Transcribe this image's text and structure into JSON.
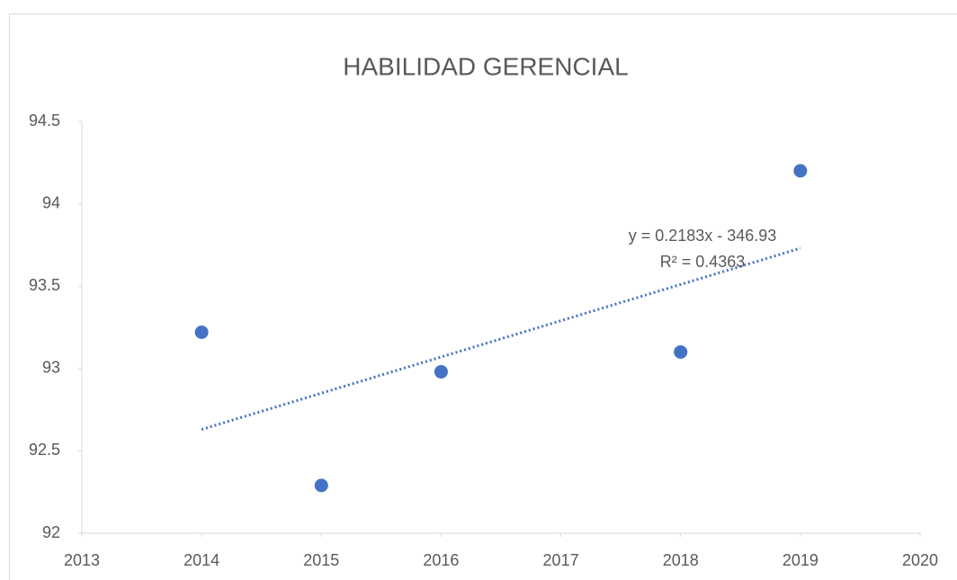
{
  "chart_data": {
    "type": "scatter",
    "title": "HABILIDAD GERENCIAL",
    "x": [
      2014,
      2015,
      2016,
      2018,
      2019
    ],
    "series": [
      {
        "color": "#4472c4",
        "values": [
          93.22,
          92.29,
          92.98,
          93.1,
          94.2
        ]
      }
    ],
    "trendline": {
      "color": "#4472c4",
      "x": [
        2014,
        2019
      ],
      "values": [
        92.63,
        93.73
      ]
    },
    "annotations": [
      "y = 0.2183x - 346.93",
      "R² = 0.4363"
    ],
    "xlim": [
      2013,
      2020
    ],
    "xticks": [
      2013,
      2014,
      2015,
      2016,
      2017,
      2018,
      2019,
      2020
    ],
    "ylim": [
      92,
      94.5
    ],
    "yticks": [
      92,
      {
        "value": 92.5,
        "label": "92.5"
      },
      93,
      {
        "value": 93.5,
        "label": "93.5"
      },
      94,
      {
        "value": 94.5,
        "label": "94.5"
      }
    ],
    "grid": false
  }
}
